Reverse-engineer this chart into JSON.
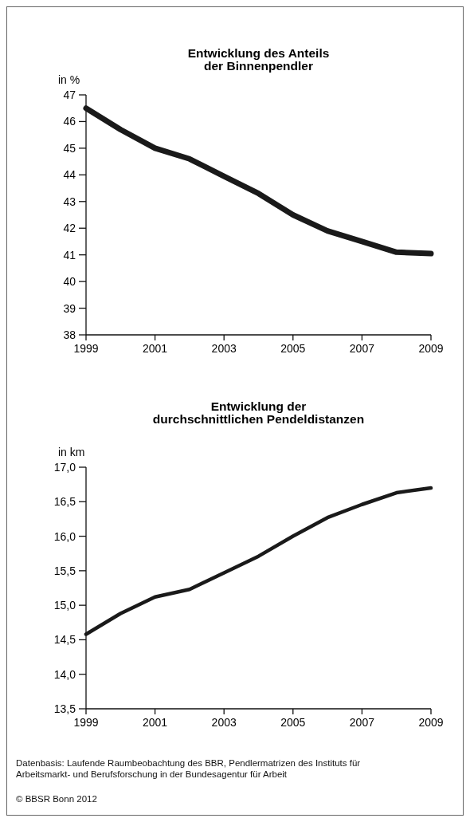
{
  "chart_data": [
    {
      "type": "line",
      "title": "Entwicklung des Anteils\nder Binnenpendler",
      "ylabel": "in %",
      "x": [
        1999,
        2000,
        2001,
        2002,
        2003,
        2004,
        2005,
        2006,
        2007,
        2008,
        2009
      ],
      "series": [
        {
          "color": "#1a1a1a",
          "values": [
            46.5,
            45.7,
            45.0,
            44.6,
            43.95,
            43.3,
            42.5,
            41.9,
            41.5,
            41.1,
            41.05
          ]
        }
      ],
      "xlim": [
        1999,
        2009
      ],
      "xticks": [
        1999,
        2001,
        2003,
        2005,
        2007,
        2009
      ],
      "ylim": [
        38,
        47
      ],
      "yticks": [
        38,
        39,
        40,
        41,
        42,
        43,
        44,
        45,
        46,
        47
      ],
      "grid": false,
      "marker": "none",
      "line_style": "solid"
    },
    {
      "type": "line",
      "title": "Entwicklung der\ndurchschnittlichen Pendeldistanzen",
      "ylabel": "in km",
      "x": [
        1999,
        2000,
        2001,
        2002,
        2003,
        2004,
        2005,
        2006,
        2007,
        2008,
        2009
      ],
      "series": [
        {
          "color": "#1a1a1a",
          "values": [
            14.58,
            14.88,
            15.12,
            15.23,
            15.47,
            15.71,
            16.0,
            16.27,
            16.46,
            16.63,
            16.7
          ]
        }
      ],
      "xlim": [
        1999,
        2009
      ],
      "xticks": [
        1999,
        2001,
        2003,
        2005,
        2007,
        2009
      ],
      "ylim": [
        13.5,
        17
      ],
      "yticks": [
        {
          "value": 13.5,
          "label": "13,5"
        },
        {
          "value": 14,
          "label": "14,0"
        },
        {
          "value": 14.5,
          "label": "14,5"
        },
        {
          "value": 15,
          "label": "15,0"
        },
        {
          "value": 15.5,
          "label": "15,5"
        },
        {
          "value": 16,
          "label": "16,0"
        },
        {
          "value": 16.5,
          "label": "16,5"
        },
        {
          "value": 17,
          "label": "17,0"
        }
      ],
      "grid": false,
      "marker": "none",
      "line_style": "solid",
      "annotations": [
        "Datenbasis: Laufende Raumbeobachtung des BBR, Pendlermatrizen des Instituts für Arbeitsmarkt- und Berufsforschung in der Bundesagentur für Arbeit",
        "© BBSR Bonn 2012"
      ]
    }
  ]
}
